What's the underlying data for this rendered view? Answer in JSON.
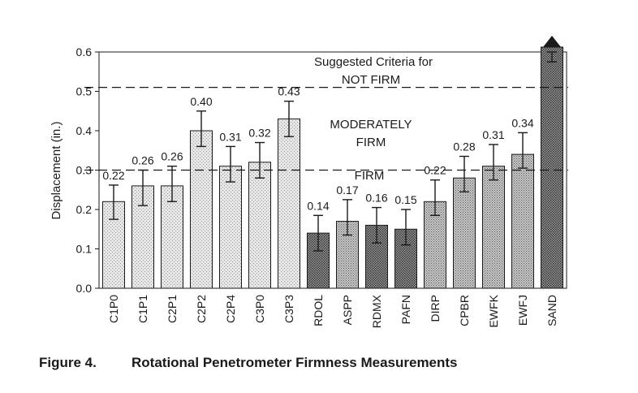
{
  "caption": {
    "figure_number": "Figure 4.",
    "title": "Rotational Penetrometer Firmness Measurements"
  },
  "colors": {
    "ink": "#1a1a1a",
    "bar_light": "#d9d9d9",
    "bar_medium": "#bdbdbd",
    "bar_dark": "#8a8a8a"
  },
  "chart_data": {
    "type": "bar",
    "title": "",
    "xlabel": "",
    "ylabel": "Displacement (in.)",
    "ylim": [
      0,
      0.6
    ],
    "yticks": [
      "0.0",
      "0.1",
      "0.2",
      "0.3",
      "0.4",
      "0.5",
      "0.6"
    ],
    "grid": false,
    "categories": [
      "C1P0",
      "C1P1",
      "C2P1",
      "C2P2",
      "C2P4",
      "C3P0",
      "C3P3",
      "RDOL",
      "ASPP",
      "RDMX",
      "PAFN",
      "DIRP",
      "CPBR",
      "EWFK",
      "EWFJ",
      "SAND"
    ],
    "values": [
      0.22,
      0.26,
      0.26,
      0.4,
      0.31,
      0.32,
      0.43,
      0.14,
      0.17,
      0.16,
      0.15,
      0.22,
      0.28,
      0.31,
      0.34,
      0.62
    ],
    "data_labels": [
      "0.22",
      "0.26",
      "0.26",
      "0.40",
      "0.31",
      "0.32",
      "0.43",
      "0.14",
      "0.17",
      "0.16",
      "0.15",
      "0.22",
      "0.28",
      "0.31",
      "0.34",
      ""
    ],
    "error_bars": [
      [
        0.175,
        0.262
      ],
      [
        0.21,
        0.3
      ],
      [
        0.22,
        0.31
      ],
      [
        0.36,
        0.45
      ],
      [
        0.27,
        0.36
      ],
      [
        0.28,
        0.37
      ],
      [
        0.385,
        0.475
      ],
      [
        0.095,
        0.185
      ],
      [
        0.135,
        0.225
      ],
      [
        0.115,
        0.205
      ],
      [
        0.11,
        0.2
      ],
      [
        0.185,
        0.275
      ],
      [
        0.245,
        0.335
      ],
      [
        0.275,
        0.365
      ],
      [
        0.305,
        0.395
      ],
      [
        0.575,
        0.615
      ]
    ],
    "shading": [
      "light",
      "light",
      "light",
      "light",
      "light",
      "light",
      "light",
      "dark",
      "medium",
      "dark",
      "dark",
      "medium",
      "medium",
      "medium",
      "medium",
      "dark"
    ],
    "off_scale_arrow": [
      false,
      false,
      false,
      false,
      false,
      false,
      false,
      false,
      false,
      false,
      false,
      false,
      false,
      false,
      false,
      true
    ],
    "thresholds": [
      {
        "value": 0.3,
        "label": "FIRM"
      },
      {
        "value": 0.51,
        "label": "NOT FIRM"
      }
    ],
    "annotations": {
      "criteria_heading": "Suggested Criteria for",
      "not_firm": "NOT FIRM",
      "moderately_line1": "MODERATELY",
      "moderately_line2": "FIRM",
      "firm": "FIRM"
    }
  }
}
